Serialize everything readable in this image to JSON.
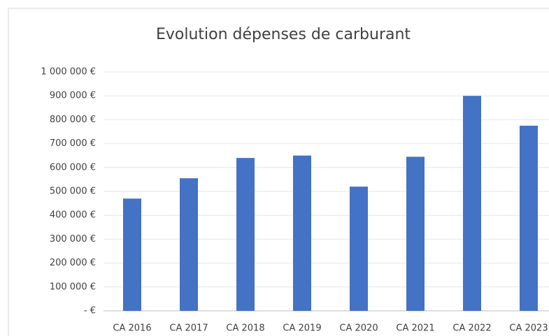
{
  "chart_data": {
    "type": "bar",
    "title": "Evolution dépenses de carburant",
    "categories": [
      "CA 2016",
      "CA 2017",
      "CA 2018",
      "CA 2019",
      "CA 2020",
      "CA 2021",
      "CA 2022",
      "CA 2023"
    ],
    "values": [
      470000,
      555000,
      640000,
      650000,
      520000,
      645000,
      900000,
      775000
    ],
    "color": "#4472c4",
    "ylim": [
      0,
      1000000
    ],
    "yticks": [
      {
        "value": 0,
        "label": "-   €"
      },
      {
        "value": 100000,
        "label": "100 000 €"
      },
      {
        "value": 200000,
        "label": "200 000 €"
      },
      {
        "value": 300000,
        "label": "300 000 €"
      },
      {
        "value": 400000,
        "label": "400 000 €"
      },
      {
        "value": 500000,
        "label": "500 000 €"
      },
      {
        "value": 600000,
        "label": "600 000 €"
      },
      {
        "value": 700000,
        "label": "700 000 €"
      },
      {
        "value": 800000,
        "label": "800 000 €"
      },
      {
        "value": 900000,
        "label": "900 000 €"
      },
      {
        "value": 1000000,
        "label": "1 000 000 €"
      }
    ],
    "grid": true
  }
}
